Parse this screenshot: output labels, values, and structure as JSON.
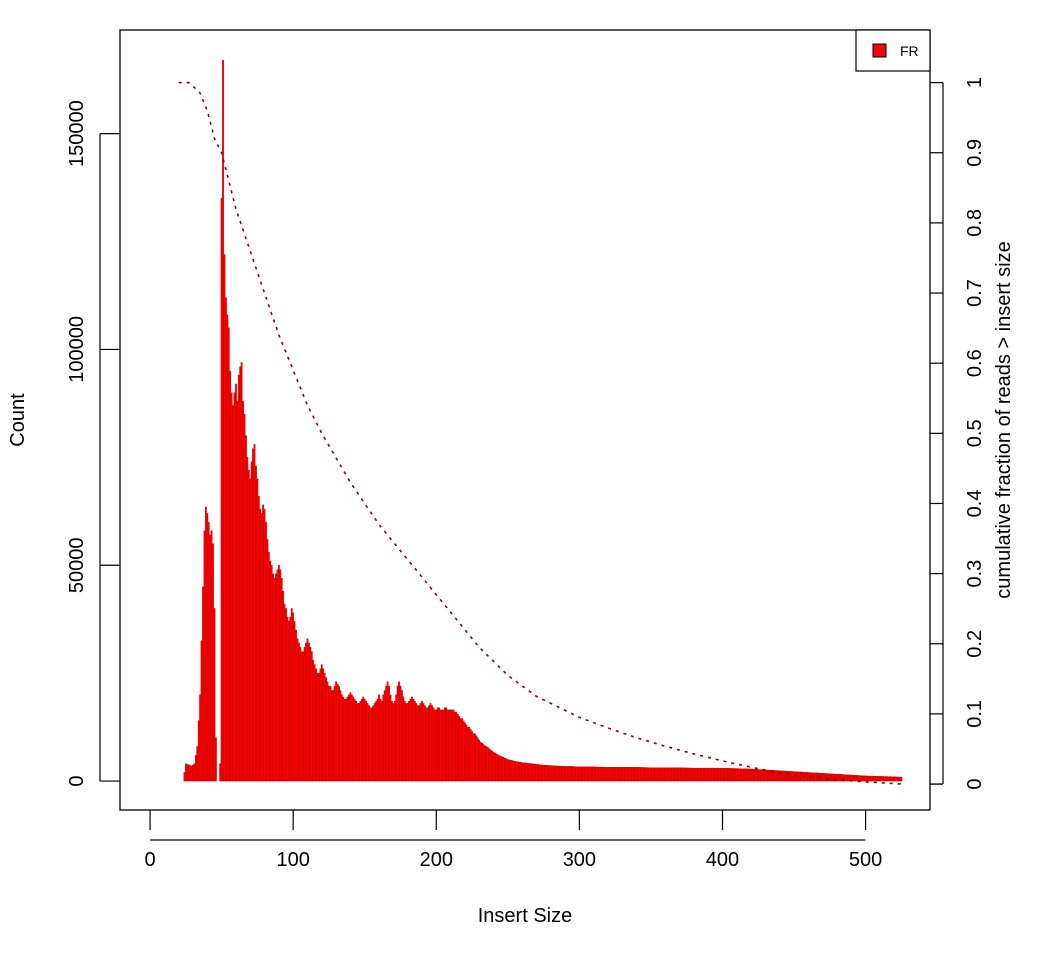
{
  "chart_data": {
    "type": "bar",
    "title": "",
    "xlabel": "Insert Size",
    "ylabel": "Count",
    "y2label": "cumulative fraction of reads > insert size",
    "xlim": [
      -21,
      545
    ],
    "ylim": [
      -6700,
      174000
    ],
    "y2lim": [
      -0.037,
      1.075
    ],
    "xticks": [
      0,
      100,
      200,
      300,
      400,
      500
    ],
    "yticks": [
      0,
      50000,
      100000,
      150000
    ],
    "y2ticks": [
      0,
      0.1,
      0.2,
      0.3,
      0.4,
      0.5,
      0.6,
      0.7,
      0.8,
      0.9,
      1
    ],
    "legend": {
      "position": "top-right",
      "entries": [
        {
          "label": "FR",
          "color": "#ff0000"
        }
      ]
    },
    "grid": false,
    "colors": {
      "bars": "#ff0000",
      "cumulative": "#8b0000",
      "bar_edge": "#b00000"
    },
    "series": [
      {
        "name": "FR",
        "type": "bar",
        "points": [
          [
            20,
            0
          ],
          [
            23,
            0
          ],
          [
            25,
            4000
          ],
          [
            29,
            3500
          ],
          [
            31,
            4000
          ],
          [
            33,
            8000
          ],
          [
            35,
            20000
          ],
          [
            37,
            45000
          ],
          [
            38,
            58000
          ],
          [
            39,
            63500
          ],
          [
            40,
            62000
          ],
          [
            41,
            60000
          ],
          [
            42,
            57000
          ],
          [
            43,
            58000
          ],
          [
            44,
            55000
          ],
          [
            45,
            40000
          ],
          [
            46,
            10000
          ],
          [
            47,
            0
          ],
          [
            48,
            0
          ],
          [
            49,
            4000
          ],
          [
            50,
            135000
          ],
          [
            51,
            167000
          ],
          [
            52,
            122000
          ],
          [
            53,
            112000
          ],
          [
            54,
            108000
          ],
          [
            55,
            105000
          ],
          [
            56,
            95000
          ],
          [
            57,
            90000
          ],
          [
            58,
            87000
          ],
          [
            59,
            90000
          ],
          [
            60,
            92000
          ],
          [
            61,
            88000
          ],
          [
            62,
            94000
          ],
          [
            63,
            96000
          ],
          [
            64,
            97000
          ],
          [
            65,
            88000
          ],
          [
            66,
            85000
          ],
          [
            67,
            80000
          ],
          [
            68,
            75000
          ],
          [
            69,
            72000
          ],
          [
            70,
            70000
          ],
          [
            71,
            74000
          ],
          [
            72,
            77000
          ],
          [
            73,
            78000
          ],
          [
            74,
            73000
          ],
          [
            75,
            70000
          ],
          [
            76,
            66000
          ],
          [
            77,
            63000
          ],
          [
            78,
            62000
          ],
          [
            79,
            64000
          ],
          [
            80,
            63000
          ],
          [
            81,
            60000
          ],
          [
            82,
            56000
          ],
          [
            83,
            53000
          ],
          [
            84,
            51000
          ],
          [
            85,
            50000
          ],
          [
            86,
            48000
          ],
          [
            87,
            47000
          ],
          [
            88,
            48000
          ],
          [
            89,
            49000
          ],
          [
            90,
            50000
          ],
          [
            91,
            49000
          ],
          [
            92,
            47000
          ],
          [
            93,
            44000
          ],
          [
            94,
            41000
          ],
          [
            95,
            40000
          ],
          [
            96,
            38000
          ],
          [
            97,
            37000
          ],
          [
            98,
            38000
          ],
          [
            99,
            40000
          ],
          [
            100,
            39000
          ],
          [
            101,
            37000
          ],
          [
            102,
            35000
          ],
          [
            103,
            33000
          ],
          [
            104,
            32000
          ],
          [
            105,
            31000
          ],
          [
            106,
            30000
          ],
          [
            107,
            30000
          ],
          [
            108,
            31000
          ],
          [
            109,
            32000
          ],
          [
            110,
            33000
          ],
          [
            111,
            32000
          ],
          [
            112,
            31000
          ],
          [
            113,
            30000
          ],
          [
            114,
            28000
          ],
          [
            115,
            27000
          ],
          [
            116,
            26000
          ],
          [
            117,
            25000
          ],
          [
            118,
            25000
          ],
          [
            119,
            26000
          ],
          [
            120,
            27000
          ],
          [
            121,
            26000
          ],
          [
            122,
            25000
          ],
          [
            123,
            24000
          ],
          [
            124,
            23000
          ],
          [
            125,
            22000
          ],
          [
            126,
            22000
          ],
          [
            127,
            21000
          ],
          [
            128,
            21000
          ],
          [
            129,
            22000
          ],
          [
            130,
            23000
          ],
          [
            131,
            22500
          ],
          [
            132,
            22000
          ],
          [
            133,
            21000
          ],
          [
            134,
            20000
          ],
          [
            135,
            19500
          ],
          [
            136,
            19000
          ],
          [
            137,
            19000
          ],
          [
            138,
            19500
          ],
          [
            139,
            20000
          ],
          [
            140,
            20500
          ],
          [
            141,
            20000
          ],
          [
            142,
            19500
          ],
          [
            143,
            19000
          ],
          [
            144,
            18500
          ],
          [
            145,
            18000
          ],
          [
            146,
            18000
          ],
          [
            147,
            18500
          ],
          [
            148,
            19000
          ],
          [
            149,
            19500
          ],
          [
            150,
            19000
          ],
          [
            151,
            18500
          ],
          [
            152,
            18000
          ],
          [
            153,
            17500
          ],
          [
            154,
            17000
          ],
          [
            155,
            17000
          ],
          [
            156,
            17500
          ],
          [
            157,
            18000
          ],
          [
            158,
            18500
          ],
          [
            159,
            19000
          ],
          [
            160,
            20000
          ],
          [
            161,
            19000
          ],
          [
            162,
            18500
          ],
          [
            163,
            20000
          ],
          [
            164,
            21000
          ],
          [
            165,
            22000
          ],
          [
            166,
            23000
          ],
          [
            167,
            22000
          ],
          [
            168,
            20000
          ],
          [
            169,
            18500
          ],
          [
            170,
            18000
          ],
          [
            171,
            18500
          ],
          [
            172,
            20000
          ],
          [
            173,
            22000
          ],
          [
            174,
            23000
          ],
          [
            175,
            22000
          ],
          [
            176,
            21000
          ],
          [
            177,
            19500
          ],
          [
            178,
            18500
          ],
          [
            179,
            18000
          ],
          [
            180,
            18000
          ],
          [
            181,
            18500
          ],
          [
            182,
            19000
          ],
          [
            183,
            19500
          ],
          [
            184,
            19000
          ],
          [
            185,
            18500
          ],
          [
            186,
            18000
          ],
          [
            187,
            17500
          ],
          [
            188,
            17500
          ],
          [
            189,
            18000
          ],
          [
            190,
            18500
          ],
          [
            191,
            18000
          ],
          [
            192,
            17500
          ],
          [
            193,
            17000
          ],
          [
            194,
            17000
          ],
          [
            195,
            17500
          ],
          [
            196,
            18000
          ],
          [
            197,
            17500
          ],
          [
            198,
            17000
          ],
          [
            199,
            16500
          ],
          [
            200,
            16500
          ],
          [
            201,
            17000
          ],
          [
            202,
            17000
          ],
          [
            203,
            16500
          ],
          [
            204,
            16500
          ],
          [
            205,
            16500
          ],
          [
            206,
            17000
          ],
          [
            207,
            17000
          ],
          [
            208,
            16500
          ],
          [
            209,
            16500
          ],
          [
            210,
            16500
          ],
          [
            211,
            16500
          ],
          [
            212,
            16500
          ],
          [
            213,
            16000
          ],
          [
            214,
            16000
          ],
          [
            215,
            15500
          ],
          [
            216,
            15000
          ],
          [
            217,
            14500
          ],
          [
            218,
            14500
          ],
          [
            219,
            14000
          ],
          [
            220,
            13500
          ],
          [
            221,
            13000
          ],
          [
            222,
            12500
          ],
          [
            223,
            12500
          ],
          [
            224,
            12000
          ],
          [
            225,
            11500
          ],
          [
            226,
            11000
          ],
          [
            227,
            11000
          ],
          [
            228,
            10500
          ],
          [
            229,
            10000
          ],
          [
            230,
            9500
          ],
          [
            231,
            9000
          ],
          [
            232,
            8800
          ],
          [
            233,
            8500
          ],
          [
            234,
            8200
          ],
          [
            235,
            8000
          ],
          [
            236,
            7800
          ],
          [
            237,
            7500
          ],
          [
            238,
            7200
          ],
          [
            239,
            7000
          ],
          [
            240,
            6700
          ],
          [
            241,
            6500
          ],
          [
            242,
            6300
          ],
          [
            243,
            6100
          ],
          [
            244,
            5900
          ],
          [
            245,
            5800
          ],
          [
            246,
            5600
          ],
          [
            247,
            5500
          ],
          [
            248,
            5300
          ],
          [
            249,
            5200
          ],
          [
            250,
            5000
          ],
          [
            255,
            4600
          ],
          [
            260,
            4300
          ],
          [
            265,
            4100
          ],
          [
            270,
            3900
          ],
          [
            275,
            3700
          ],
          [
            280,
            3600
          ],
          [
            285,
            3500
          ],
          [
            290,
            3400
          ],
          [
            295,
            3400
          ],
          [
            300,
            3300
          ],
          [
            310,
            3300
          ],
          [
            320,
            3200
          ],
          [
            330,
            3200
          ],
          [
            340,
            3200
          ],
          [
            350,
            3100
          ],
          [
            360,
            3100
          ],
          [
            370,
            3100
          ],
          [
            380,
            3000
          ],
          [
            390,
            3000
          ],
          [
            400,
            3000
          ],
          [
            410,
            2900
          ],
          [
            420,
            2800
          ],
          [
            430,
            2600
          ],
          [
            440,
            2400
          ],
          [
            450,
            2200
          ],
          [
            460,
            2000
          ],
          [
            470,
            1800
          ],
          [
            480,
            1600
          ],
          [
            490,
            1400
          ],
          [
            500,
            1200
          ],
          [
            510,
            1100
          ],
          [
            520,
            1000
          ],
          [
            525,
            900
          ]
        ]
      },
      {
        "name": "cumulative",
        "type": "line",
        "style": "dotted",
        "points": [
          [
            20,
            1
          ],
          [
            27,
            1
          ],
          [
            30,
            0.995
          ],
          [
            35,
            0.985
          ],
          [
            40,
            0.96
          ],
          [
            45,
            0.92
          ],
          [
            50,
            0.9
          ],
          [
            55,
            0.86
          ],
          [
            60,
            0.82
          ],
          [
            70,
            0.76
          ],
          [
            80,
            0.7
          ],
          [
            90,
            0.64
          ],
          [
            100,
            0.59
          ],
          [
            110,
            0.54
          ],
          [
            120,
            0.5
          ],
          [
            130,
            0.465
          ],
          [
            140,
            0.43
          ],
          [
            150,
            0.4
          ],
          [
            160,
            0.37
          ],
          [
            170,
            0.345
          ],
          [
            180,
            0.32
          ],
          [
            190,
            0.295
          ],
          [
            200,
            0.27
          ],
          [
            210,
            0.245
          ],
          [
            220,
            0.22
          ],
          [
            230,
            0.195
          ],
          [
            240,
            0.175
          ],
          [
            250,
            0.155
          ],
          [
            260,
            0.14
          ],
          [
            270,
            0.125
          ],
          [
            280,
            0.115
          ],
          [
            290,
            0.105
          ],
          [
            300,
            0.095
          ],
          [
            320,
            0.08
          ],
          [
            340,
            0.066
          ],
          [
            360,
            0.054
          ],
          [
            380,
            0.043
          ],
          [
            400,
            0.033
          ],
          [
            420,
            0.024
          ],
          [
            440,
            0.016
          ],
          [
            460,
            0.01
          ],
          [
            480,
            0.006
          ],
          [
            500,
            0.003
          ],
          [
            525,
            0
          ]
        ]
      }
    ]
  }
}
